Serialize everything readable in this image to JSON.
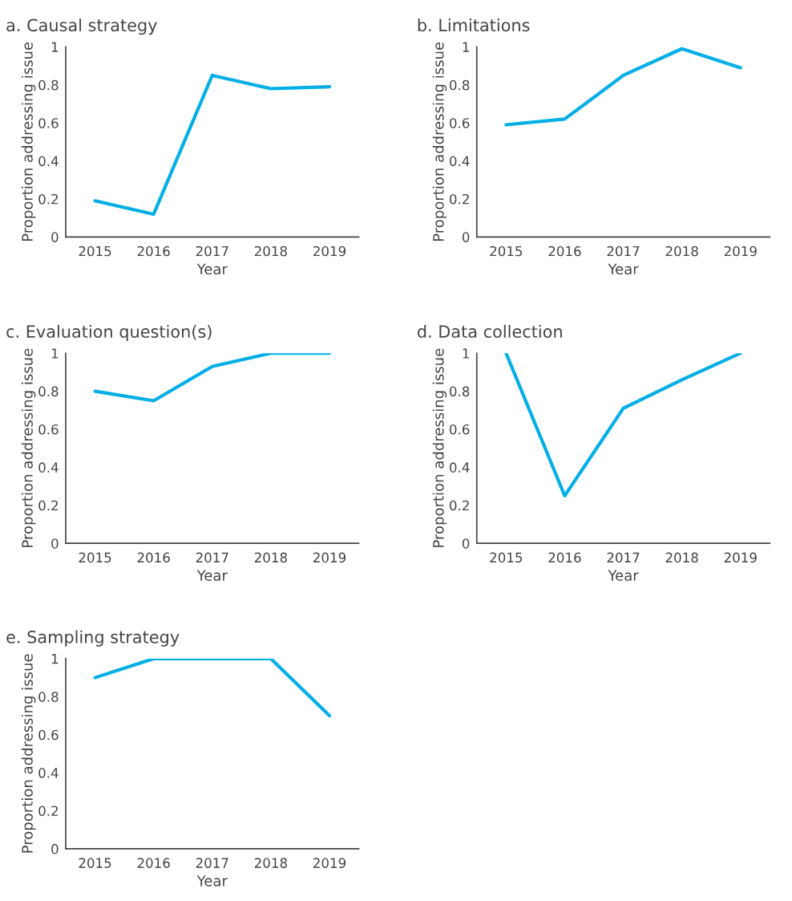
{
  "chart_data": [
    {
      "type": "line",
      "title": "a. Causal strategy",
      "xlabel": "Year",
      "ylabel": "Proportion addressing issue",
      "categories": [
        "2015",
        "2016",
        "2017",
        "2018",
        "2019"
      ],
      "values": [
        0.19,
        0.12,
        0.85,
        0.78,
        0.79
      ],
      "color": "#00aee6",
      "ylim": [
        0,
        1
      ],
      "yticks": [
        0,
        0.2,
        0.4,
        0.6,
        0.8,
        1
      ]
    },
    {
      "type": "line",
      "title": "b. Limitations",
      "xlabel": "Year",
      "ylabel": "Proportion addressing issue",
      "categories": [
        "2015",
        "2016",
        "2017",
        "2018",
        "2019"
      ],
      "values": [
        0.59,
        0.62,
        0.85,
        0.99,
        0.89
      ],
      "color": "#00aee6",
      "ylim": [
        0,
        1
      ],
      "yticks": [
        0,
        0.2,
        0.4,
        0.6,
        0.8,
        1
      ]
    },
    {
      "type": "line",
      "title": "c. Evaluation question(s)",
      "xlabel": "Year",
      "ylabel": "Proportion addressing issue",
      "categories": [
        "2015",
        "2016",
        "2017",
        "2018",
        "2019"
      ],
      "values": [
        0.8,
        0.75,
        0.93,
        1.0,
        1.0
      ],
      "color": "#00aee6",
      "ylim": [
        0,
        1
      ],
      "yticks": [
        0,
        0.2,
        0.4,
        0.6,
        0.8,
        1
      ]
    },
    {
      "type": "line",
      "title": "d. Data collection",
      "xlabel": "Year",
      "ylabel": "Proportion addressing issue",
      "categories": [
        "2015",
        "2016",
        "2017",
        "2018",
        "2019"
      ],
      "values": [
        1.0,
        0.25,
        0.71,
        0.86,
        1.0
      ],
      "color": "#00aee6",
      "ylim": [
        0,
        1
      ],
      "yticks": [
        0,
        0.2,
        0.4,
        0.6,
        0.8,
        1
      ]
    },
    {
      "type": "line",
      "title": "e. Sampling strategy",
      "xlabel": "Year",
      "ylabel": "Proportion addressing issue",
      "categories": [
        "2015",
        "2016",
        "2017",
        "2018",
        "2019"
      ],
      "values": [
        0.9,
        1.0,
        1.0,
        1.0,
        0.7
      ],
      "color": "#00aee6",
      "ylim": [
        0,
        1
      ],
      "yticks": [
        0,
        0.2,
        0.4,
        0.6,
        0.8,
        1
      ]
    }
  ]
}
